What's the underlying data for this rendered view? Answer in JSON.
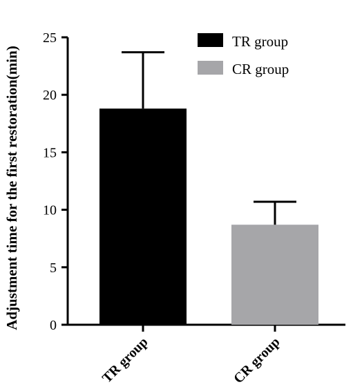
{
  "chart_data": {
    "type": "bar",
    "categories": [
      "TR group",
      "CR group"
    ],
    "values": [
      18.8,
      8.7
    ],
    "error": [
      4.9,
      2.0
    ],
    "colors": [
      "#000000",
      "#a6a6a9"
    ],
    "ylabel": "Adjustment time for the first restoration(min)",
    "xlabel": "",
    "ylim": [
      0,
      25
    ],
    "yticks": [
      "0",
      "5",
      "10",
      "15",
      "20",
      "25"
    ],
    "grid": false,
    "legend": {
      "position": "top-right",
      "entries": [
        "TR group",
        "CR group"
      ]
    }
  }
}
